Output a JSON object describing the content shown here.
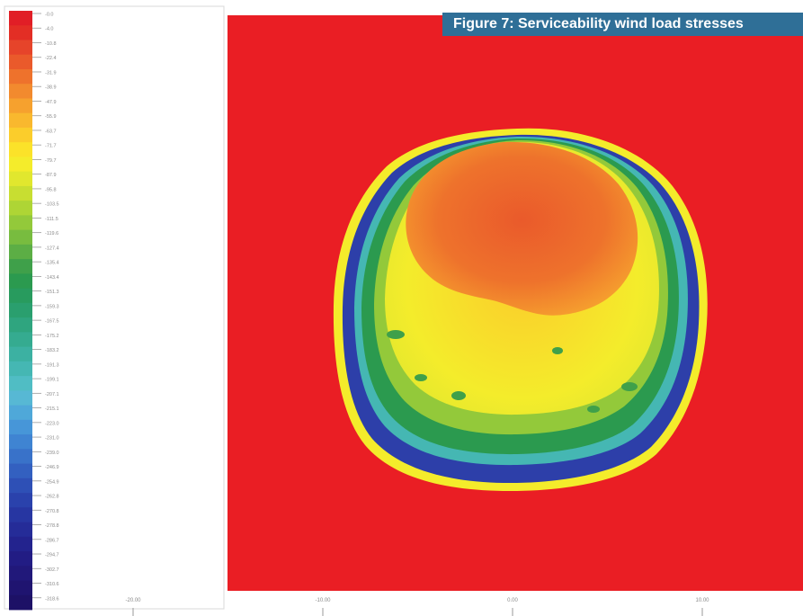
{
  "figure": {
    "caption": "Figure 7: Serviceability wind load stresses",
    "caption_color": "#2f6f97"
  },
  "chart_data": {
    "type": "heatmap",
    "title": "",
    "xlabel": "",
    "ylabel": "",
    "background_color": "#ea1e24",
    "legend": {
      "placement": "left",
      "values": [
        -0.0,
        -4.0,
        -10.8,
        -22.4,
        -31.9,
        -38.9,
        -47.9,
        -55.9,
        -63.7,
        -71.7,
        -79.7,
        -87.9,
        -95.8,
        -103.5,
        -111.5,
        -119.6,
        -127.4,
        -135.4,
        -143.4,
        -151.3,
        -159.3,
        -167.5,
        -175.2,
        -183.2,
        -191.3,
        -199.1,
        -207.1,
        -215.1,
        -223.0,
        -231.0,
        -239.0,
        -246.9,
        -254.9,
        -262.8,
        -270.8,
        -278.8,
        -286.7,
        -294.7,
        -302.7,
        -310.6,
        -318.6
      ],
      "colors": [
        "#e11e26",
        "#e32e25",
        "#e6442a",
        "#ea5a2b",
        "#ee722c",
        "#f28a2e",
        "#f6a12e",
        "#f9b82e",
        "#fbcd2b",
        "#fbe229",
        "#f4ec2b",
        "#e1e72e",
        "#c8de31",
        "#aed535",
        "#93c93a",
        "#78bc3f",
        "#5cae45",
        "#3fa04a",
        "#2b9a4f",
        "#289b5e",
        "#2a9f6e",
        "#2fa57f",
        "#35ab90",
        "#3cb1a2",
        "#45b7b3",
        "#50bdc4",
        "#57b8d4",
        "#4fa8d9",
        "#4796d8",
        "#3f84d2",
        "#3972c9",
        "#3360c0",
        "#2e50b6",
        "#2a42ac",
        "#2736a2",
        "#252c98",
        "#23238e",
        "#221c84",
        "#21187a",
        "#1f1470",
        "#1d1166"
      ]
    },
    "x_ticks": [
      "-20.00",
      "-10.00",
      "0.00",
      "10.00"
    ],
    "xlim": [
      -24.0,
      15.2
    ],
    "regions": [
      {
        "name": "outer-ring",
        "color": "#2d3fa9",
        "level": -270.8
      },
      {
        "name": "green-band",
        "color": "#2b9a4f",
        "level": -143.4
      },
      {
        "name": "yellow-zone",
        "color": "#f7e62a",
        "level": -71.7
      },
      {
        "name": "orange-core",
        "color": "#ee722c",
        "level": -31.9
      }
    ]
  }
}
